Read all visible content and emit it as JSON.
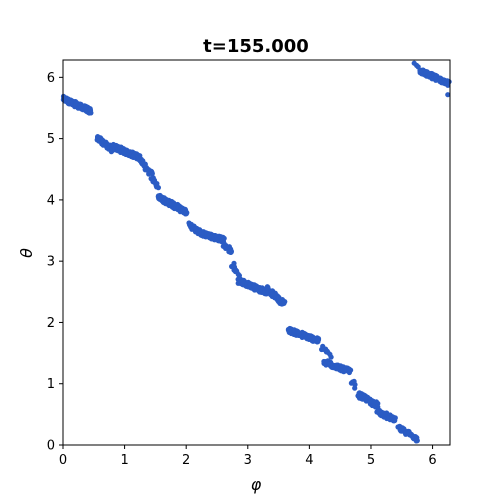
{
  "chart_data": {
    "type": "scatter",
    "title": "t=155.000",
    "xlabel": "φ",
    "ylabel": "θ",
    "xlim": [
      0,
      6.283
    ],
    "ylim": [
      0,
      6.283
    ],
    "grid": false,
    "xticks": [
      0,
      1,
      2,
      3,
      4,
      5,
      6
    ],
    "yticks": [
      0,
      1,
      2,
      3,
      4,
      5,
      6
    ],
    "xtick_labels": [
      "0",
      "1",
      "2",
      "3",
      "4",
      "5",
      "6"
    ],
    "ytick_labels": [
      "0",
      "1",
      "2",
      "3",
      "4",
      "5",
      "6"
    ],
    "marker_color": "#2b5cc4",
    "clusters": [
      {
        "x": [
          0.0,
          0.45
        ],
        "y": [
          5.65,
          5.45
        ],
        "points": 140
      },
      {
        "x": [
          0.55,
          0.8
        ],
        "y": [
          5.02,
          4.82
        ],
        "points": 40
      },
      {
        "x": [
          0.8,
          1.25
        ],
        "y": [
          4.88,
          4.68
        ],
        "points": 140
      },
      {
        "x": [
          1.25,
          1.45
        ],
        "y": [
          4.65,
          4.4
        ],
        "points": 30
      },
      {
        "x": [
          1.45,
          1.55
        ],
        "y": [
          4.35,
          4.22
        ],
        "points": 10
      },
      {
        "x": [
          1.55,
          2.0
        ],
        "y": [
          4.05,
          3.8
        ],
        "points": 140
      },
      {
        "x": [
          2.05,
          2.25
        ],
        "y": [
          3.6,
          3.45
        ],
        "points": 35
      },
      {
        "x": [
          2.25,
          2.6
        ],
        "y": [
          3.45,
          3.35
        ],
        "points": 80
      },
      {
        "x": [
          2.6,
          2.75
        ],
        "y": [
          3.3,
          3.15
        ],
        "points": 15
      },
      {
        "x": [
          2.75,
          2.85
        ],
        "y": [
          2.95,
          2.8
        ],
        "points": 12
      },
      {
        "x": [
          2.85,
          3.3
        ],
        "y": [
          2.68,
          2.5
        ],
        "points": 150
      },
      {
        "x": [
          3.3,
          3.6
        ],
        "y": [
          2.55,
          2.3
        ],
        "points": 50
      },
      {
        "x": [
          3.65,
          4.15
        ],
        "y": [
          1.88,
          1.7
        ],
        "points": 120
      },
      {
        "x": [
          4.2,
          4.35
        ],
        "y": [
          1.6,
          1.45
        ],
        "points": 10
      },
      {
        "x": [
          4.25,
          4.65
        ],
        "y": [
          1.35,
          1.2
        ],
        "points": 90
      },
      {
        "x": [
          4.7,
          4.75
        ],
        "y": [
          1.05,
          0.95
        ],
        "points": 5
      },
      {
        "x": [
          4.8,
          5.1
        ],
        "y": [
          0.82,
          0.65
        ],
        "points": 80
      },
      {
        "x": [
          5.1,
          5.4
        ],
        "y": [
          0.55,
          0.4
        ],
        "points": 50
      },
      {
        "x": [
          5.45,
          5.75
        ],
        "y": [
          0.28,
          0.1
        ],
        "points": 50
      },
      {
        "x": [
          5.8,
          6.25
        ],
        "y": [
          6.1,
          5.9
        ],
        "points": 110
      },
      {
        "x": [
          5.72,
          5.76
        ],
        "y": [
          6.25,
          6.2
        ],
        "points": 3
      },
      {
        "x": [
          6.25,
          6.28
        ],
        "y": [
          5.68,
          5.64
        ],
        "points": 2
      }
    ]
  }
}
